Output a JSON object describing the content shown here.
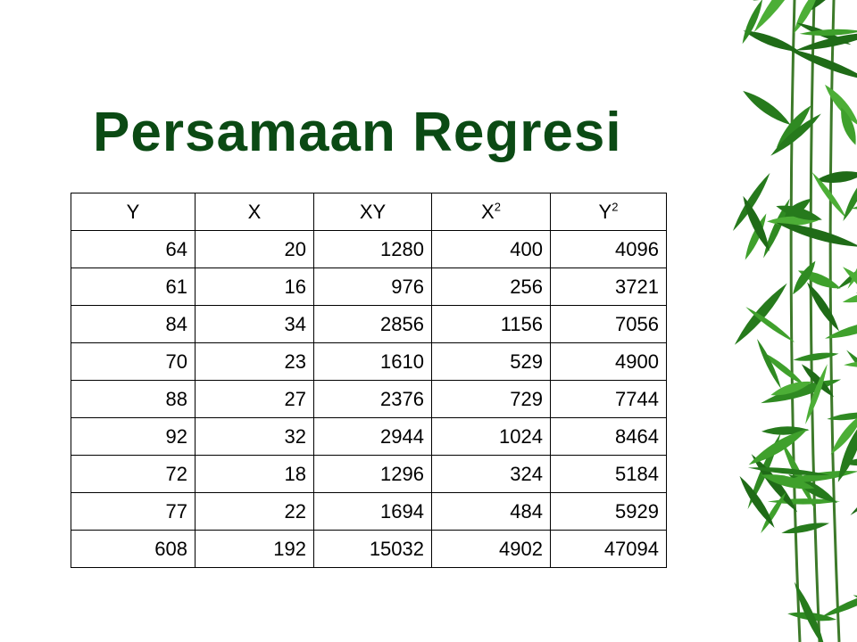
{
  "title": "Persamaan Regresi",
  "table": {
    "headers": [
      {
        "base": "Y",
        "sup": ""
      },
      {
        "base": "X",
        "sup": ""
      },
      {
        "base": "XY",
        "sup": ""
      },
      {
        "base": "X",
        "sup": "2"
      },
      {
        "base": "Y",
        "sup": "2"
      }
    ],
    "rows": [
      [
        "64",
        "20",
        "1280",
        "400",
        "4096"
      ],
      [
        "61",
        "16",
        "976",
        "256",
        "3721"
      ],
      [
        "84",
        "34",
        "2856",
        "1156",
        "7056"
      ],
      [
        "70",
        "23",
        "1610",
        "529",
        "4900"
      ],
      [
        "88",
        "27",
        "2376",
        "729",
        "7744"
      ],
      [
        "92",
        "32",
        "2944",
        "1024",
        "8464"
      ],
      [
        "72",
        "18",
        "1296",
        "324",
        "5184"
      ],
      [
        "77",
        "22",
        "1694",
        "484",
        "5929"
      ],
      [
        "608",
        "192",
        "15032",
        "4902",
        "47094"
      ]
    ]
  },
  "decoration": {
    "icon": "bamboo-leaves-icon",
    "leaf_color": "#2f8a22"
  }
}
